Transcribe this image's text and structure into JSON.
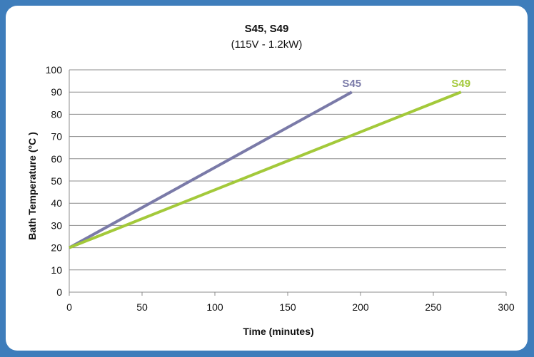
{
  "chart_data": {
    "type": "line",
    "title": "S45, S49",
    "subtitle": "(115V - 1.2kW)",
    "xlabel": "Time (minutes)",
    "ylabel": "Bath Temperature (°C )",
    "xlim": [
      0,
      300
    ],
    "ylim": [
      0,
      100
    ],
    "x_ticks": [
      0,
      50,
      100,
      150,
      200,
      250,
      300
    ],
    "y_ticks": [
      0,
      10,
      20,
      30,
      40,
      50,
      60,
      70,
      80,
      90,
      100
    ],
    "grid": "horizontal",
    "legend": "inline labels at line ends",
    "series": [
      {
        "name": "S45",
        "color": "#7a7aa8",
        "x": [
          0,
          194
        ],
        "y": [
          20,
          90
        ]
      },
      {
        "name": "S49",
        "color": "#a3c93a",
        "x": [
          0,
          269
        ],
        "y": [
          20,
          90
        ]
      }
    ]
  }
}
